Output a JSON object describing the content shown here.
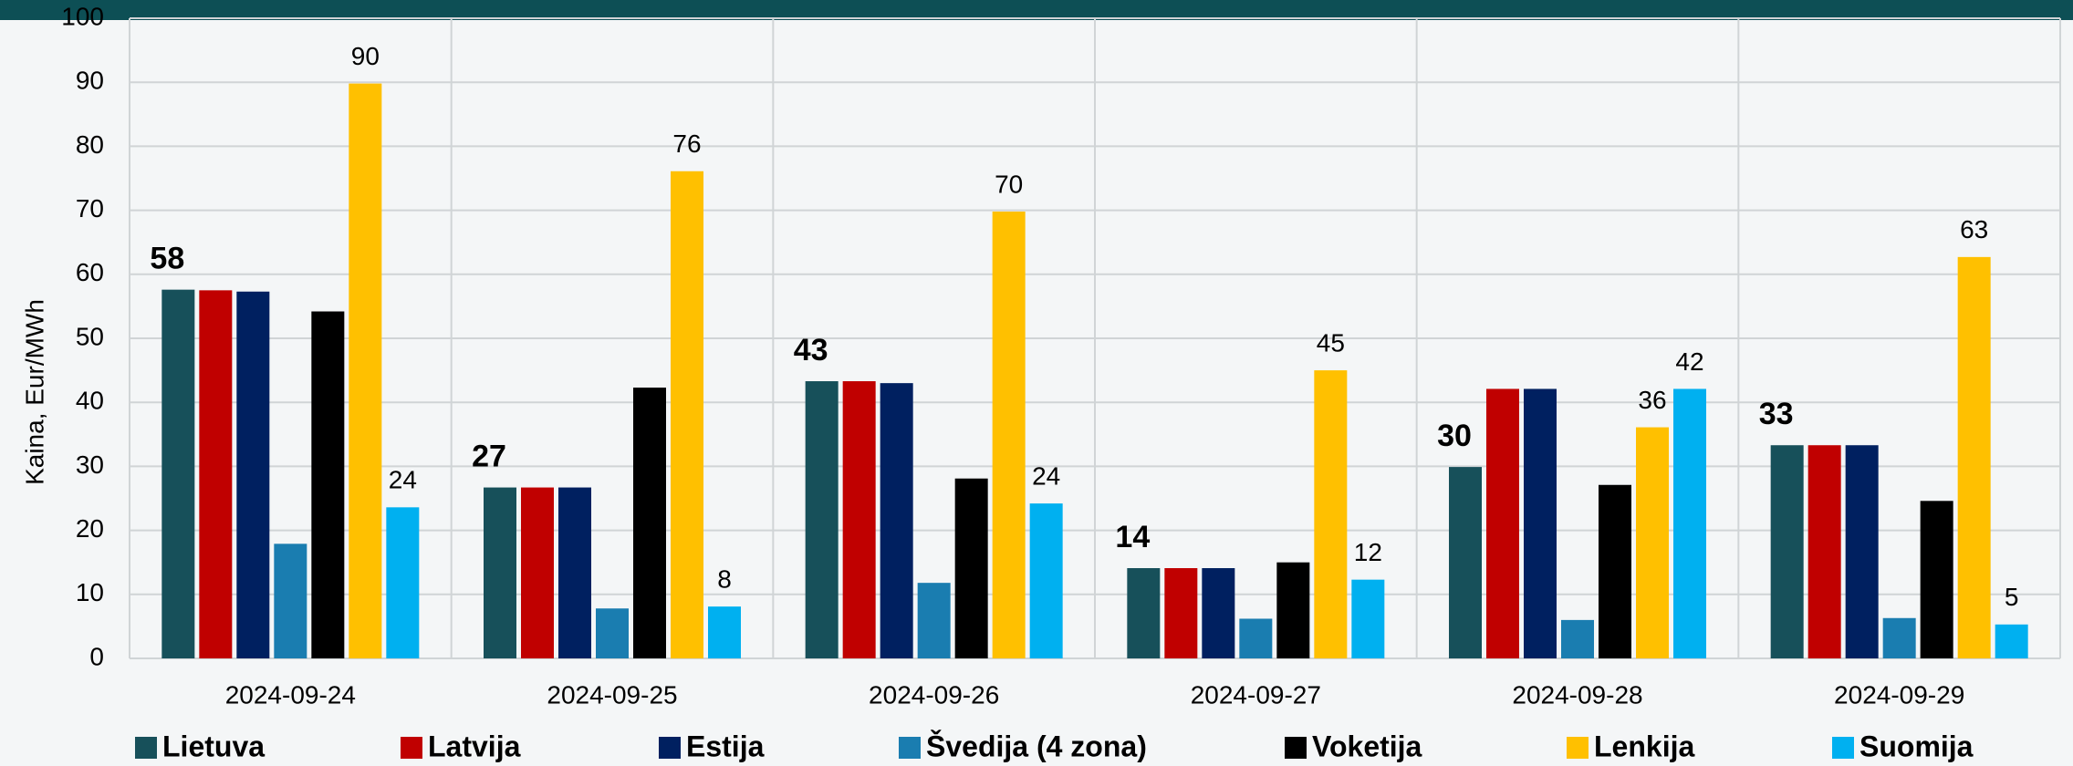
{
  "chart_data": {
    "type": "bar",
    "y_label": "Kaina, Eur/MWh",
    "categories": [
      "2024-09-24",
      "2024-09-25",
      "2024-09-26",
      "2024-09-27",
      "2024-09-28",
      "2024-09-29"
    ],
    "series": [
      {
        "name": "Lietuva",
        "color": "#17505a",
        "values": [
          57.6,
          26.7,
          43.3,
          14.1,
          29.9,
          33.3
        ],
        "value_labels": [
          "58",
          "27",
          "43",
          "14",
          "30",
          "33"
        ],
        "label_bold": true
      },
      {
        "name": "Latvija",
        "color": "#c00000",
        "values": [
          57.5,
          26.7,
          43.3,
          14.1,
          42.1,
          33.3
        ]
      },
      {
        "name": "Estija",
        "color": "#002060",
        "values": [
          57.3,
          26.7,
          43.0,
          14.1,
          42.1,
          33.3
        ]
      },
      {
        "name": "Švedija (4 zona)",
        "color": "#1a7db0",
        "values": [
          17.9,
          7.8,
          11.8,
          6.2,
          6.0,
          6.3
        ]
      },
      {
        "name": "Voketija",
        "color": "#000000",
        "values": [
          54.2,
          42.3,
          28.1,
          15.0,
          27.1,
          24.6
        ]
      },
      {
        "name": "Lenkija",
        "color": "#ffc000",
        "values": [
          89.8,
          76.1,
          69.8,
          45.0,
          36.1,
          62.7
        ],
        "value_labels": [
          "90",
          "76",
          "70",
          "45",
          "36",
          "63"
        ]
      },
      {
        "name": "Suomija",
        "color": "#00b0f0",
        "values": [
          23.6,
          8.1,
          24.2,
          12.3,
          42.1,
          5.3
        ],
        "value_labels": [
          "24",
          "8",
          "24",
          "12",
          "42",
          "5"
        ]
      }
    ],
    "ylim": [
      0,
      100
    ],
    "yticks": [
      0,
      10,
      20,
      30,
      40,
      50,
      60,
      70,
      80,
      90,
      100
    ],
    "grid": true
  }
}
